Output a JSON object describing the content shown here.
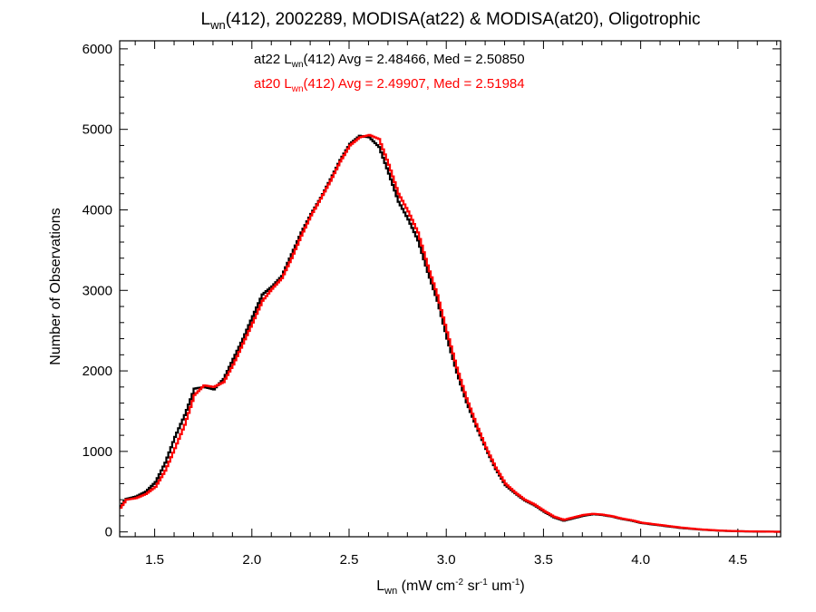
{
  "chart_data": {
    "type": "line",
    "title": {
      "lead": "L",
      "sub": "wn",
      "rest": "(412), 2002289, MODISA(at22) & MODISA(at20), Oligotrophic"
    },
    "xlabel": {
      "lead": "L",
      "sub": "wn",
      "units_a": " (mW cm",
      "sup_a": "-2",
      "units_b": " sr",
      "sup_b": "-1",
      "units_c": " um",
      "sup_c": "-1",
      "units_d": ")"
    },
    "ylabel": "Number of Observations",
    "xlim": [
      1.32,
      4.72
    ],
    "ylim": [
      -60,
      6100
    ],
    "x_ticks": [
      1.5,
      2.0,
      2.5,
      3.0,
      3.5,
      4.0,
      4.5
    ],
    "x_tick_labels": [
      "1.5",
      "2.0",
      "2.5",
      "3.0",
      "3.5",
      "4.0",
      "4.5"
    ],
    "y_ticks": [
      0,
      1000,
      2000,
      3000,
      4000,
      5000,
      6000
    ],
    "y_tick_labels": [
      "0",
      "1000",
      "2000",
      "3000",
      "4000",
      "5000",
      "6000"
    ],
    "grid": false,
    "series": [
      {
        "name": "at22",
        "color": "#000000",
        "x": [
          1.32,
          1.35,
          1.4,
          1.45,
          1.5,
          1.55,
          1.6,
          1.65,
          1.7,
          1.75,
          1.8,
          1.85,
          1.9,
          1.95,
          2.0,
          2.05,
          2.1,
          2.15,
          2.2,
          2.25,
          2.3,
          2.35,
          2.4,
          2.45,
          2.5,
          2.55,
          2.6,
          2.65,
          2.7,
          2.75,
          2.8,
          2.85,
          2.9,
          2.95,
          3.0,
          3.05,
          3.1,
          3.15,
          3.2,
          3.25,
          3.3,
          3.35,
          3.4,
          3.45,
          3.5,
          3.55,
          3.6,
          3.65,
          3.7,
          3.75,
          3.8,
          3.85,
          3.9,
          3.95,
          4.0,
          4.1,
          4.2,
          4.3,
          4.4,
          4.5,
          4.6,
          4.7
        ],
        "values": [
          320,
          410,
          440,
          500,
          620,
          860,
          1180,
          1450,
          1780,
          1800,
          1770,
          1900,
          2150,
          2400,
          2680,
          2950,
          3050,
          3180,
          3450,
          3720,
          3950,
          4150,
          4380,
          4620,
          4820,
          4920,
          4900,
          4780,
          4450,
          4100,
          3880,
          3620,
          3230,
          2870,
          2400,
          1980,
          1610,
          1310,
          1030,
          780,
          580,
          480,
          390,
          330,
          250,
          180,
          140,
          170,
          200,
          220,
          210,
          190,
          160,
          140,
          110,
          80,
          50,
          30,
          15,
          8,
          4,
          2
        ]
      },
      {
        "name": "at20",
        "color": "#ff0000",
        "x": [
          1.32,
          1.35,
          1.4,
          1.45,
          1.5,
          1.55,
          1.6,
          1.65,
          1.7,
          1.75,
          1.8,
          1.85,
          1.9,
          1.95,
          2.0,
          2.05,
          2.1,
          2.15,
          2.2,
          2.25,
          2.3,
          2.35,
          2.4,
          2.45,
          2.5,
          2.55,
          2.6,
          2.65,
          2.7,
          2.75,
          2.8,
          2.85,
          2.9,
          2.95,
          3.0,
          3.05,
          3.1,
          3.15,
          3.2,
          3.25,
          3.3,
          3.35,
          3.4,
          3.45,
          3.5,
          3.55,
          3.6,
          3.65,
          3.7,
          3.75,
          3.8,
          3.85,
          3.9,
          3.95,
          4.0,
          4.1,
          4.2,
          4.3,
          4.4,
          4.5,
          4.6,
          4.7
        ],
        "values": [
          300,
          400,
          420,
          470,
          560,
          760,
          1040,
          1330,
          1700,
          1820,
          1800,
          1860,
          2080,
          2340,
          2600,
          2870,
          3020,
          3150,
          3400,
          3680,
          3930,
          4140,
          4360,
          4600,
          4800,
          4900,
          4930,
          4880,
          4560,
          4200,
          3980,
          3720,
          3310,
          2940,
          2480,
          2040,
          1660,
          1340,
          1050,
          800,
          600,
          490,
          400,
          340,
          260,
          190,
          150,
          180,
          210,
          225,
          215,
          195,
          165,
          145,
          115,
          85,
          55,
          32,
          17,
          9,
          5,
          2
        ]
      }
    ],
    "annotations": [
      {
        "prefix": "at22 L",
        "sub": "wn",
        "stat": "(412) Avg = 2.48466, Med = 2.50850",
        "color": "#000000"
      },
      {
        "prefix": "at20 L",
        "sub": "wn",
        "stat": "(412) Avg = 2.49907, Med = 2.51984",
        "color": "#ff0000"
      }
    ]
  }
}
